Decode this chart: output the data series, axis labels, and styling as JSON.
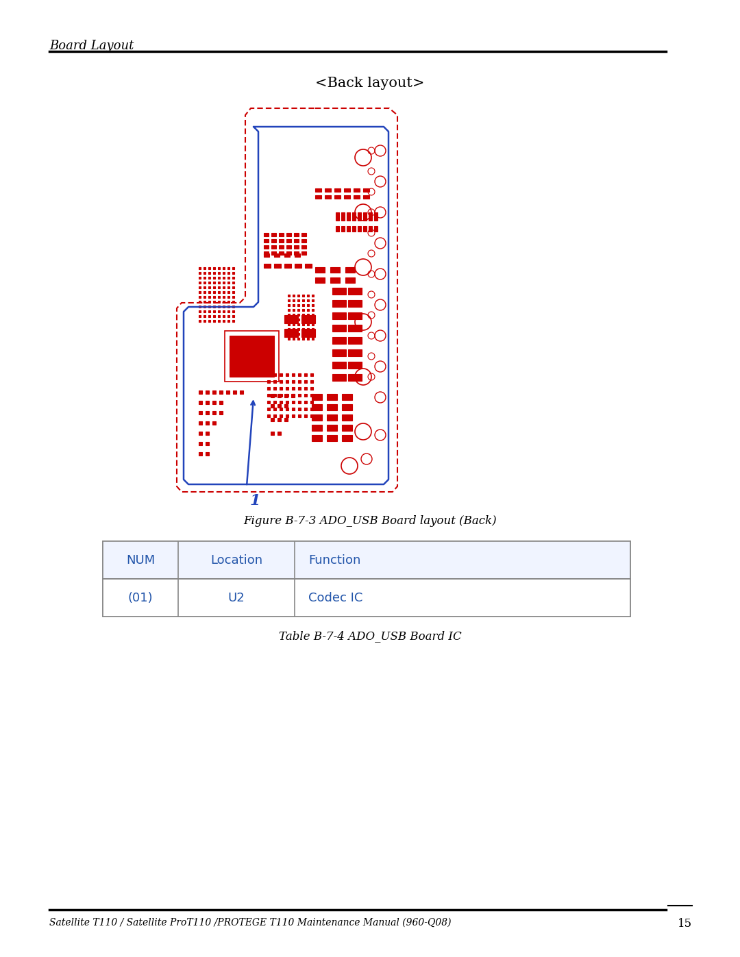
{
  "page_title": "Board Layout",
  "back_layout_label": "<Back layout>",
  "figure_caption": "Figure B-7-3 ADO_USB Board layout (Back)",
  "table_caption": "Table B-7-4 ADO_USB Board IC",
  "footer_text": "Satellite T110 / Satellite ProT110 /PROTEGE T110 Maintenance Manual (960-Q08)",
  "page_number": "15",
  "table_headers": [
    "NUM",
    "Location",
    "Function"
  ],
  "table_row": [
    "(01)",
    "U2",
    "Codec IC"
  ],
  "table_color": "#2255aa",
  "board_outline_color": "#cc0000",
  "board_blue_outline_color": "#2244bb",
  "bg_color": "#ffffff"
}
